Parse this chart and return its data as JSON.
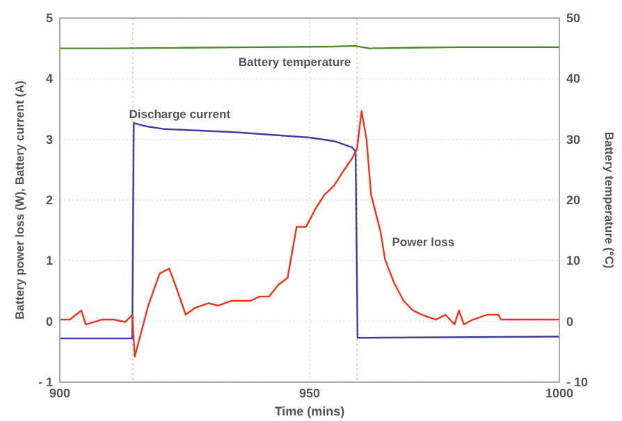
{
  "chart_data": {
    "type": "line",
    "xlabel": "Time (mins)",
    "ylabel": "Battery power loss (W), Battery current (A)",
    "y2label": "Battery temperature (°C)",
    "xlim": [
      900,
      1000
    ],
    "xticks": [
      900,
      950,
      1000
    ],
    "ylim": [
      -1,
      5
    ],
    "yticks": [
      {
        "value": -1,
        "label": "- 1"
      },
      0,
      1,
      2,
      3,
      4,
      5
    ],
    "y2lim": [
      -10,
      50
    ],
    "y2ticks": [
      {
        "value": -10,
        "label": "- 10"
      },
      0,
      10,
      20,
      30,
      40,
      50
    ],
    "grid": true,
    "legend": false,
    "line_style": "solid",
    "marker": "none",
    "ref_lines": [
      {
        "axis": "x",
        "value": 914.6,
        "color": "#f2b8a8",
        "line_style": "dotted"
      },
      {
        "axis": "x",
        "value": 959.5,
        "color": "#f2b8a8",
        "line_style": "dotted"
      }
    ],
    "series": [
      {
        "name": "Battery temperature",
        "color": "#4a8a2a",
        "axis": "y2",
        "x": [
          900,
          910,
          925,
          940,
          955,
          959,
          962,
          970,
          980,
          990,
          1000
        ],
        "values": [
          45,
          45,
          45.1,
          45.2,
          45.3,
          45.4,
          45,
          45.1,
          45.2,
          45.2,
          45.2
        ]
      },
      {
        "name": "Discharge current",
        "color": "#3a3f9a",
        "x": [
          900,
          914.5,
          914.8,
          917,
          921,
          935,
          950,
          955,
          958.5,
          959.2,
          959.6,
          1000
        ],
        "values": [
          -0.28,
          -0.28,
          3.27,
          3.22,
          3.17,
          3.12,
          3.03,
          2.97,
          2.87,
          2.8,
          -0.27,
          -0.25
        ]
      },
      {
        "name": "Power loss",
        "color": "#e8351e",
        "x": [
          900,
          902,
          904.3,
          905.2,
          908.4,
          910.8,
          913.1,
          914.5,
          915,
          917.7,
          920,
          921.9,
          923.3,
          925.2,
          927,
          929.8,
          931.7,
          934.4,
          938.2,
          940,
          941.9,
          943.7,
          945.6,
          947.4,
          949.3,
          951.2,
          953,
          954.9,
          956.7,
          958.6,
          959.5,
          960.4,
          961.4,
          962.3,
          964.2,
          965.1,
          966.9,
          968.8,
          970.7,
          972.5,
          975.3,
          977.2,
          979,
          979.9,
          980.9,
          982.7,
          985.5,
          987.8,
          988.3,
          1000
        ],
        "values": [
          0.03,
          0.03,
          0.18,
          -0.05,
          0.03,
          0.03,
          -0.01,
          0.11,
          -0.58,
          0.26,
          0.79,
          0.87,
          0.56,
          0.11,
          0.22,
          0.3,
          0.26,
          0.34,
          0.34,
          0.41,
          0.41,
          0.6,
          0.72,
          1.56,
          1.56,
          1.86,
          2.09,
          2.24,
          2.47,
          2.7,
          2.85,
          3.47,
          3.0,
          2.09,
          1.48,
          1.02,
          0.64,
          0.34,
          0.18,
          0.11,
          0.03,
          0.11,
          -0.05,
          0.18,
          -0.05,
          0.03,
          0.11,
          0.11,
          0.03,
          0.03
        ]
      }
    ]
  }
}
